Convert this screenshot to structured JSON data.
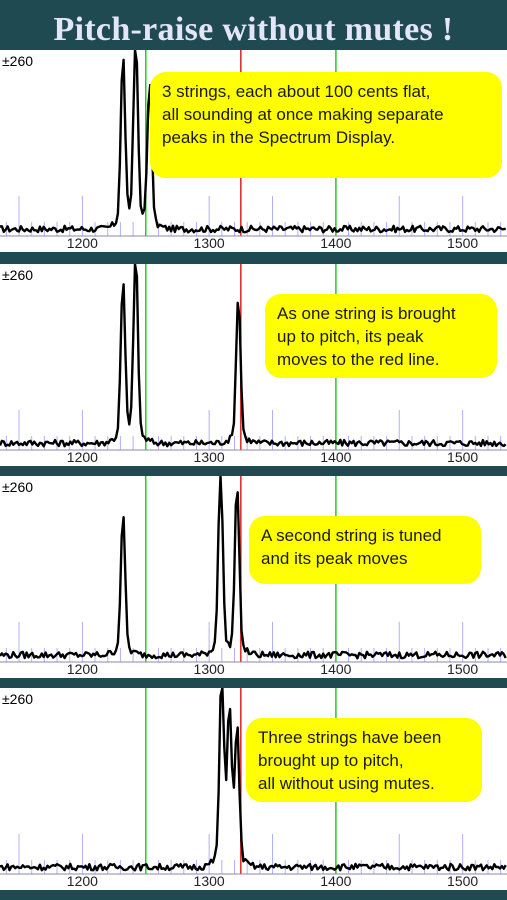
{
  "title": "Pitch-raise without mutes !",
  "colors": {
    "background": "#1f4a52",
    "title_text": "#e4e6f8",
    "callout": "#ffff00",
    "trace": "#000000",
    "green_line": "#22cc22",
    "red_line": "#dd2222",
    "tick_lines": "#b0b0ff"
  },
  "panels": [
    {
      "y_range_label": "±260",
      "callout": "3 strings, each about 100 cents flat,\nall sounding at once making separate\npeaks in the Spectrum Display."
    },
    {
      "y_range_label": "±260",
      "callout": "As one string is brought\nup to pitch, its peak\nmoves to the red line."
    },
    {
      "y_range_label": "±260",
      "callout": "A second string is tuned\nand its peak moves"
    },
    {
      "y_range_label": "±260",
      "callout": "Three strings have been\nbrought up to pitch,\nall without using mutes."
    }
  ],
  "chart_data": [
    {
      "type": "line",
      "xlim": [
        1135,
        1535
      ],
      "ylim": [
        0,
        1
      ],
      "x_ticks": [
        1200,
        1300,
        1400,
        1500
      ],
      "green_lines": [
        1250,
        1400
      ],
      "red_line": 1325,
      "peaks": [
        {
          "x": 1232,
          "y": 0.88
        },
        {
          "x": 1242,
          "y": 1.0
        },
        {
          "x": 1253,
          "y": 0.75
        }
      ]
    },
    {
      "type": "line",
      "xlim": [
        1135,
        1535
      ],
      "ylim": [
        0,
        1
      ],
      "x_ticks": [
        1200,
        1300,
        1400,
        1500
      ],
      "green_lines": [
        1250,
        1400
      ],
      "red_line": 1325,
      "peaks": [
        {
          "x": 1232,
          "y": 0.82
        },
        {
          "x": 1242,
          "y": 0.98
        },
        {
          "x": 1323,
          "y": 0.76
        }
      ]
    },
    {
      "type": "line",
      "xlim": [
        1135,
        1535
      ],
      "ylim": [
        0,
        1
      ],
      "x_ticks": [
        1200,
        1300,
        1400,
        1500
      ],
      "green_lines": [
        1250,
        1400
      ],
      "red_line": 1325,
      "peaks": [
        {
          "x": 1232,
          "y": 0.72
        },
        {
          "x": 1309,
          "y": 0.98
        },
        {
          "x": 1322,
          "y": 0.88
        }
      ]
    },
    {
      "type": "line",
      "xlim": [
        1135,
        1535
      ],
      "ylim": [
        0,
        1
      ],
      "x_ticks": [
        1200,
        1300,
        1400,
        1500
      ],
      "green_lines": [
        1250,
        1400
      ],
      "red_line": 1325,
      "peaks": [
        {
          "x": 1310,
          "y": 1.0
        },
        {
          "x": 1316,
          "y": 0.8
        },
        {
          "x": 1322,
          "y": 0.7
        }
      ]
    }
  ]
}
